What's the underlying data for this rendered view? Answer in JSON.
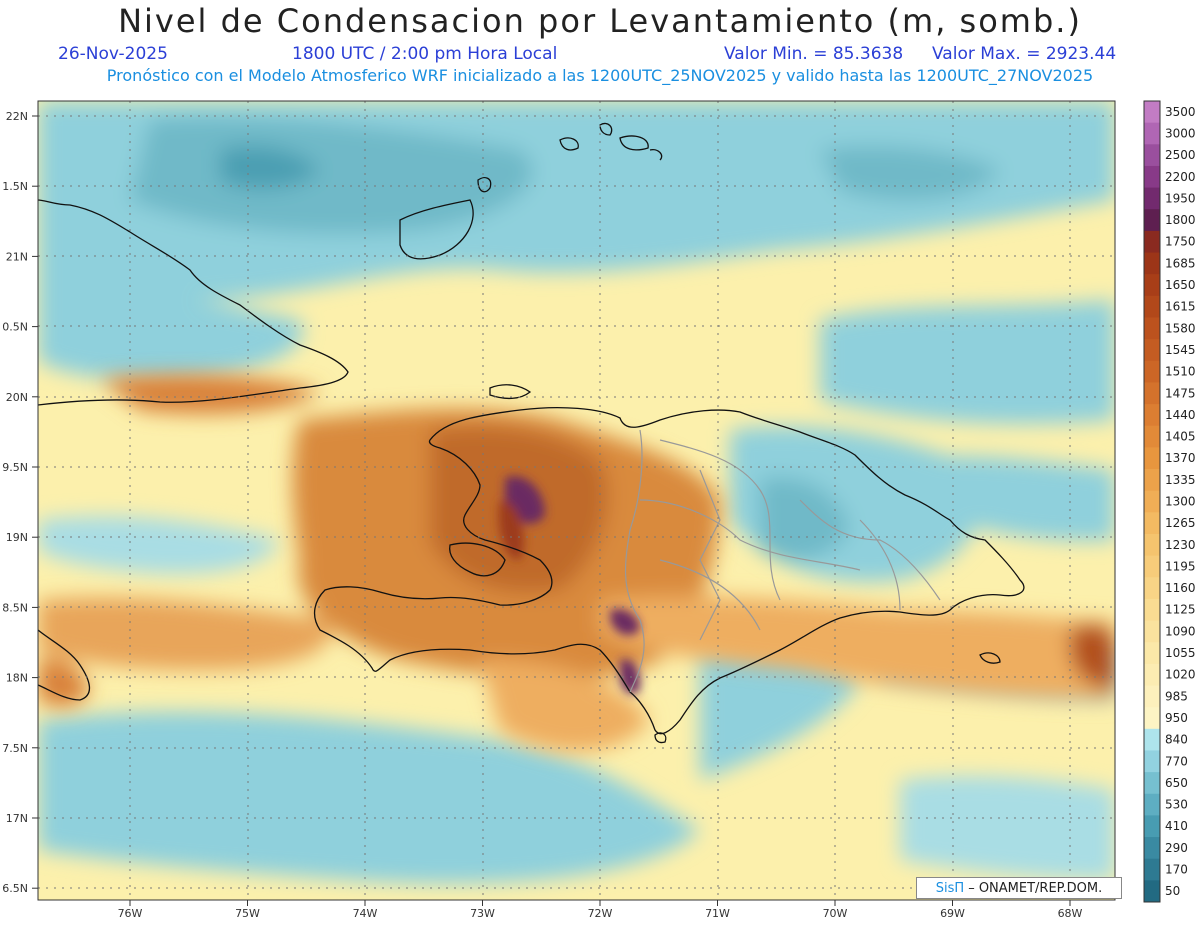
{
  "header": {
    "title": "Nivel de Condensacion por Levantamiento (m, somb.)",
    "date": "26-Nov-2025",
    "time": "1800 UTC / 2:00 pm Hora Local",
    "min": "Valor Min. = 85.3638",
    "max": "Valor Max. = 2923.44",
    "model": "Pronóstico con el Modelo Atmosferico WRF inicializado a las 1200UTC_25NOV2025 y valido hasta las  1200UTC_27NOV2025"
  },
  "axes": {
    "lat_labels": [
      "22N",
      "1.5N",
      "21N",
      "0.5N",
      "20N",
      "9.5N",
      "19N",
      "8.5N",
      "18N",
      "7.5N",
      "17N",
      "6.5N"
    ],
    "lon_labels": [
      "76W",
      "75W",
      "74W",
      "73W",
      "72W",
      "71W",
      "70W",
      "69W",
      "68W"
    ]
  },
  "colorbar": {
    "levels": [
      "3500",
      "3000",
      "2500",
      "2200",
      "1950",
      "1800",
      "1750",
      "1685",
      "1650",
      "1615",
      "1580",
      "1545",
      "1510",
      "1475",
      "1440",
      "1405",
      "1370",
      "1335",
      "1300",
      "1265",
      "1230",
      "1195",
      "1160",
      "1125",
      "1090",
      "1055",
      "1020",
      "985",
      "950",
      "840",
      "770",
      "650",
      "530",
      "410",
      "290",
      "170",
      "50"
    ],
    "colors": [
      "#c27cc4",
      "#b066b4",
      "#9a4f9e",
      "#883a88",
      "#722a6e",
      "#5e1f50",
      "#8a2a20",
      "#9c3518",
      "#a83e18",
      "#b2481a",
      "#bc521e",
      "#c45c22",
      "#cc6626",
      "#d4722c",
      "#dc7e32",
      "#e28a38",
      "#e8963e",
      "#ec a24a",
      "#f0ae56",
      "#f3ba62",
      "#f5c46e",
      "#f7cc7a",
      "#f8d486",
      "#f9dc92",
      "#fae29e",
      "#fbe8a8",
      "#fcecb2",
      "#fdf0bc",
      "#fdf4c4",
      "#aee4ec",
      "#92d2e0",
      "#76c0d0",
      "#5eaec2",
      "#489cb2",
      "#3a8aa2",
      "#2e7a92",
      "#226a82"
    ]
  },
  "credit": {
    "brand": "SisΠ",
    "text": "– ONAMET/REP.DOM."
  }
}
